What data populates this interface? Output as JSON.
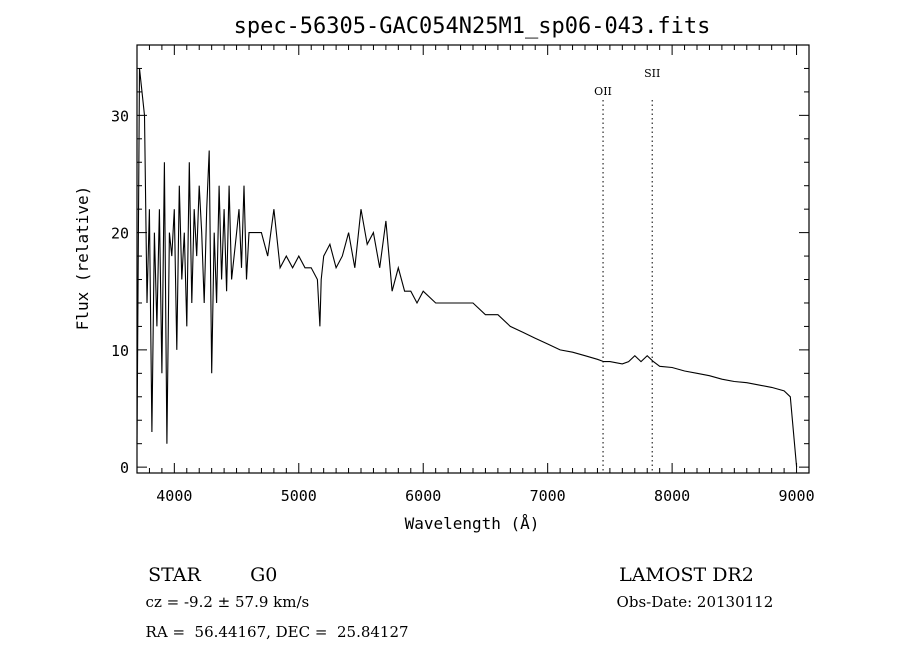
{
  "chart_data": {
    "type": "line",
    "title": "spec-56305-GAC054N25M1_sp06-043.fits",
    "xlabel": "Wavelength (Å)",
    "ylabel": "Flux (relative)",
    "xlim": [
      3700,
      9100
    ],
    "ylim": [
      -0.5,
      36
    ],
    "x_ticks": [
      4000,
      5000,
      6000,
      7000,
      8000,
      9000
    ],
    "x_tick_labels": [
      "4000",
      "5000",
      "6000",
      "7000",
      "8000",
      "9000"
    ],
    "y_ticks": [
      0,
      10,
      20,
      30
    ],
    "y_tick_labels": [
      "0",
      "10",
      "20",
      "30"
    ],
    "grid": false,
    "line_color": "#000000",
    "lines": [
      {
        "label": "OII",
        "x": 7445
      },
      {
        "label": "SII",
        "x": 7840
      }
    ],
    "series": [
      {
        "x": [
          3700,
          3720,
          3740,
          3760,
          3780,
          3800,
          3820,
          3840,
          3860,
          3880,
          3900,
          3920,
          3940,
          3960,
          3980,
          4000,
          4020,
          4040,
          4060,
          4080,
          4100,
          4120,
          4140,
          4160,
          4180,
          4200,
          4220,
          4240,
          4260,
          4280,
          4300,
          4320,
          4340,
          4360,
          4380,
          4400,
          4420,
          4440,
          4460,
          4480,
          4500,
          4520,
          4540,
          4560,
          4580,
          4600,
          4650,
          4700,
          4750,
          4800,
          4850,
          4900,
          4950,
          5000,
          5050,
          5100,
          5150,
          5170,
          5180,
          5200,
          5250,
          5300,
          5350,
          5400,
          5450,
          5500,
          5550,
          5600,
          5650,
          5700,
          5750,
          5800,
          5850,
          5900,
          5950,
          6000,
          6100,
          6200,
          6300,
          6400,
          6500,
          6563,
          6600,
          6700,
          6800,
          6900,
          7000,
          7100,
          7200,
          7300,
          7400,
          7450,
          7500,
          7600,
          7650,
          7700,
          7750,
          7800,
          7850,
          7900,
          8000,
          8100,
          8200,
          8300,
          8400,
          8500,
          8600,
          8700,
          8800,
          8900,
          8950,
          9000
        ],
        "y": [
          2,
          34,
          32,
          30,
          14,
          22,
          3,
          20,
          12,
          22,
          8,
          26,
          2,
          20,
          18,
          22,
          10,
          24,
          16,
          20,
          12,
          26,
          14,
          22,
          18,
          24,
          20,
          14,
          22,
          27,
          8,
          20,
          14,
          24,
          16,
          22,
          15,
          24,
          16,
          18,
          20,
          22,
          17,
          24,
          16,
          20,
          20,
          20,
          18,
          22,
          17,
          18,
          17,
          18,
          17,
          17,
          16,
          12,
          16,
          18,
          19,
          17,
          18,
          20,
          17,
          22,
          19,
          20,
          17,
          21,
          15,
          17,
          15,
          15,
          14,
          15,
          14,
          14,
          14,
          14,
          13,
          13,
          13,
          12,
          11.5,
          11,
          10.5,
          10,
          9.8,
          9.5,
          9.2,
          9,
          9,
          8.8,
          9,
          9.5,
          9,
          9.5,
          9,
          8.6,
          8.5,
          8.2,
          8,
          7.8,
          7.5,
          7.3,
          7.2,
          7,
          6.8,
          6.5,
          6,
          0
        ]
      }
    ]
  },
  "info": {
    "object_class": "STAR",
    "subclass": "G0",
    "survey": "LAMOST DR2",
    "redshift": "cz = -9.2 ± 57.9 km/s",
    "obs_date": "Obs-Date: 20130112",
    "coords": "RA =  56.44167, DEC =  25.84127"
  }
}
